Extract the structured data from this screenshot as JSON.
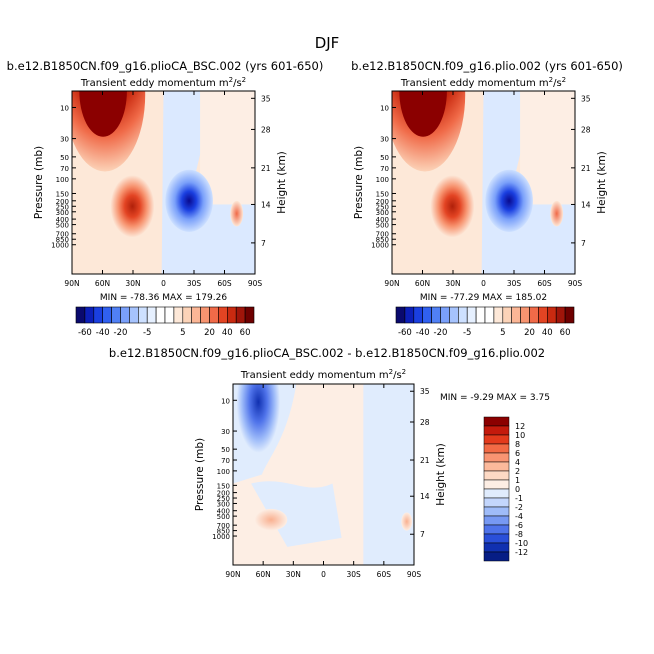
{
  "figure_title": "DJF",
  "chart_data": [
    {
      "type": "heatmap",
      "title": "b.e12.B1850CN.f09_g16.plioCA_BSC.002 (yrs 601-650)",
      "subtitle": "Transient eddy momentum",
      "units_base": "m",
      "units_exp": "2",
      "units_slash": "/s",
      "units_exp2": "2",
      "xlabel": "",
      "ylabel": "Pressure (mb)",
      "y2label": "Height (km)",
      "x_ticks": [
        "90N",
        "60N",
        "30N",
        "0",
        "30S",
        "60S",
        "90S"
      ],
      "y_ticks": [
        "10",
        "30",
        "50",
        "70",
        "100",
        "150",
        "200",
        "250",
        "300",
        "400",
        "500",
        "700",
        "850",
        "1000"
      ],
      "y2_ticks": [
        "35",
        "28",
        "21",
        "14",
        "7"
      ],
      "min_label": "MIN = -78.36",
      "max_label": "MAX = 179.26",
      "min": -78.36,
      "max": 179.26
    },
    {
      "type": "heatmap",
      "title": "b.e12.B1850CN.f09_g16.plio.002 (yrs 601-650)",
      "subtitle": "Transient eddy momentum",
      "units_base": "m",
      "units_exp": "2",
      "units_slash": "/s",
      "units_exp2": "2",
      "xlabel": "",
      "ylabel": "Pressure (mb)",
      "y2label": "Height (km)",
      "x_ticks": [
        "90N",
        "60N",
        "30N",
        "0",
        "30S",
        "60S",
        "90S"
      ],
      "y_ticks": [
        "10",
        "30",
        "50",
        "70",
        "100",
        "150",
        "200",
        "250",
        "300",
        "400",
        "500",
        "700",
        "850",
        "1000"
      ],
      "y2_ticks": [
        "35",
        "28",
        "21",
        "14",
        "7"
      ],
      "min_label": "MIN = -77.29",
      "max_label": "MAX = 185.02",
      "min": -77.29,
      "max": 185.02
    },
    {
      "type": "heatmap",
      "title": "b.e12.B1850CN.f09_g16.plioCA_BSC.002 - b.e12.B1850CN.f09_g16.plio.002",
      "subtitle": "Transient eddy momentum",
      "units_base": "m",
      "units_exp": "2",
      "units_slash": "/s",
      "units_exp2": "2",
      "xlabel": "",
      "ylabel": "Pressure (mb)",
      "y2label": "Height (km)",
      "x_ticks": [
        "90N",
        "60N",
        "30N",
        "0",
        "30S",
        "60S",
        "90S"
      ],
      "y_ticks": [
        "10",
        "30",
        "50",
        "70",
        "100",
        "150",
        "200",
        "250",
        "300",
        "400",
        "500",
        "700",
        "850",
        "1000"
      ],
      "y2_ticks": [
        "35",
        "28",
        "21",
        "14",
        "7"
      ],
      "min_label": "MIN = -9.29",
      "max_label": "MAX =",
      "max_value_label": "3.75",
      "min": -9.29,
      "max": 3.75
    }
  ],
  "colorbar_top": {
    "labels": [
      "-60",
      "-40",
      "-20",
      "-5",
      "5",
      "20",
      "40",
      "60"
    ],
    "colors": [
      "#0a0a6e",
      "#0c1fb8",
      "#1a3fe0",
      "#3060f0",
      "#5080f5",
      "#7aa0fa",
      "#a6c3fd",
      "#cde0ff",
      "#e6f0ff",
      "#ffffff",
      "#ffffff",
      "#fde8d8",
      "#fcd3b8",
      "#fbb696",
      "#f79470",
      "#f06a48",
      "#e34423",
      "#c92a10",
      "#a0150a",
      "#6e0000"
    ]
  },
  "colorbar_diff": {
    "labels": [
      "12",
      "10",
      "8",
      "6",
      "4",
      "2",
      "1",
      "0",
      "-1",
      "-2",
      "-4",
      "-6",
      "-8",
      "-10",
      "-12"
    ],
    "colors": [
      "#8b0000",
      "#c41a0c",
      "#e33a1c",
      "#f26a45",
      "#f99472",
      "#fcb99b",
      "#fdd9c4",
      "#fdeee4",
      "#e0ecfd",
      "#c3d6fc",
      "#9fbcf9",
      "#7799f3",
      "#4f73ea",
      "#2a4fd9",
      "#1030b0",
      "#061d85"
    ]
  },
  "colors": {
    "positive_dark": "#8b0000",
    "positive_mid": "#e34423",
    "positive_light": "#fde8d8",
    "negative_dark": "#0a1a9e",
    "negative_light": "#dbe9ff"
  }
}
